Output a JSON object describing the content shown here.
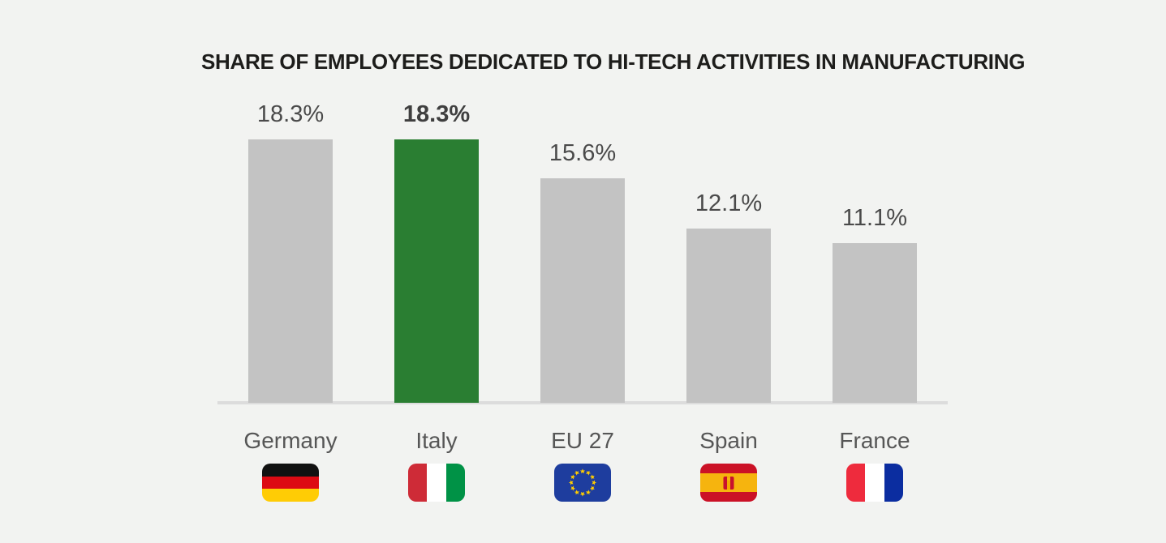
{
  "title": "SHARE OF EMPLOYEES DEDICATED TO HI-TECH ACTIVITIES IN MANUFACTURING",
  "chart_data": {
    "type": "bar",
    "categories": [
      "Germany",
      "Italy",
      "EU 27",
      "Spain",
      "France"
    ],
    "values": [
      18.3,
      18.3,
      15.6,
      12.1,
      11.1
    ],
    "value_labels": [
      "18.3%",
      "18.3%",
      "15.6%",
      "12.1%",
      "11.1%"
    ],
    "highlight_index": 1,
    "highlight_category": "Italy",
    "xlabel": "",
    "ylabel": "",
    "ylim": [
      0,
      20
    ],
    "grid": false,
    "legend": false,
    "bar_color": "#c3c3c3",
    "highlight_color": "#2a7e32",
    "axis_line_color": "#dcdcdc"
  },
  "flags": [
    {
      "country": "Germany",
      "icon": "germany-flag-icon",
      "colors": [
        "#111111",
        "#dd0a13",
        "#ffcc05"
      ]
    },
    {
      "country": "Italy",
      "icon": "italy-flag-icon",
      "colors": [
        "#ce2b37",
        "#ffffff",
        "#009246"
      ]
    },
    {
      "country": "EU 27",
      "icon": "eu-flag-icon",
      "colors": [
        "#1e3d9e",
        "#ffcc00"
      ]
    },
    {
      "country": "Spain",
      "icon": "spain-flag-icon",
      "colors": [
        "#cb1126",
        "#f6b40e"
      ]
    },
    {
      "country": "France",
      "icon": "france-flag-icon",
      "colors": [
        "#ee2b3d",
        "#ffffff",
        "#0b2da0"
      ]
    }
  ],
  "colors": {
    "background": "#f2f3f1",
    "title_text": "#1d1d1b",
    "value_text": "#4a4a4a",
    "country_text": "#565656"
  }
}
